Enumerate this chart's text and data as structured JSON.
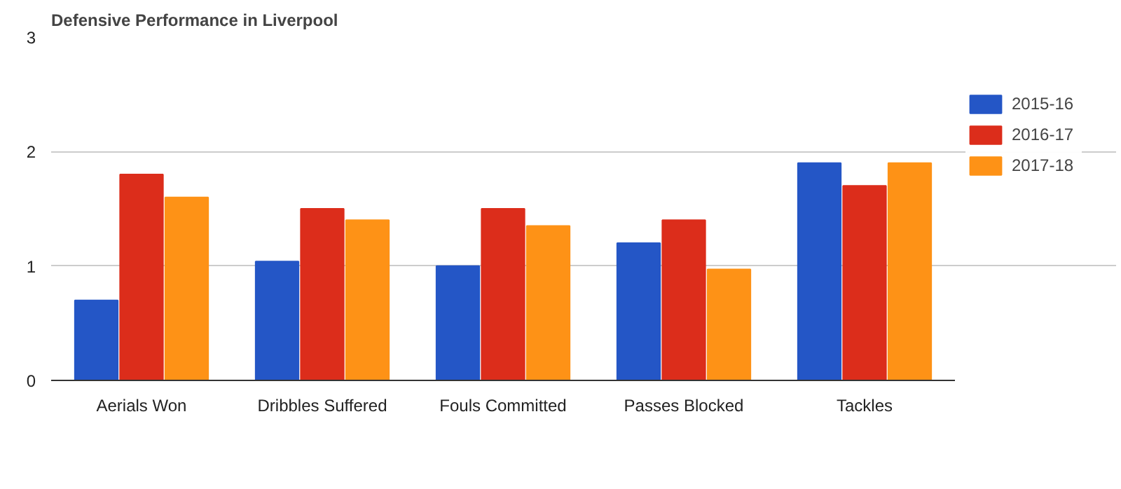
{
  "chart_data": {
    "type": "bar",
    "title": "Defensive Performance in Liverpool",
    "categories": [
      "Aerials Won",
      "Dribbles Suffered",
      "Fouls Committed",
      "Passes Blocked",
      "Tackles"
    ],
    "series": [
      {
        "name": "2015-16",
        "color": "#2456c6",
        "values": [
          0.7,
          1.04,
          1.0,
          1.2,
          1.9
        ]
      },
      {
        "name": "2016-17",
        "color": "#dc2d1b",
        "values": [
          1.8,
          1.5,
          1.5,
          1.4,
          1.7
        ]
      },
      {
        "name": "2017-18",
        "color": "#fe9216",
        "values": [
          1.6,
          1.4,
          1.35,
          0.97,
          1.9
        ]
      }
    ],
    "ylim": [
      0,
      3
    ],
    "yticks": [
      0,
      1,
      2,
      3
    ],
    "grid": "y",
    "legend": "right"
  }
}
